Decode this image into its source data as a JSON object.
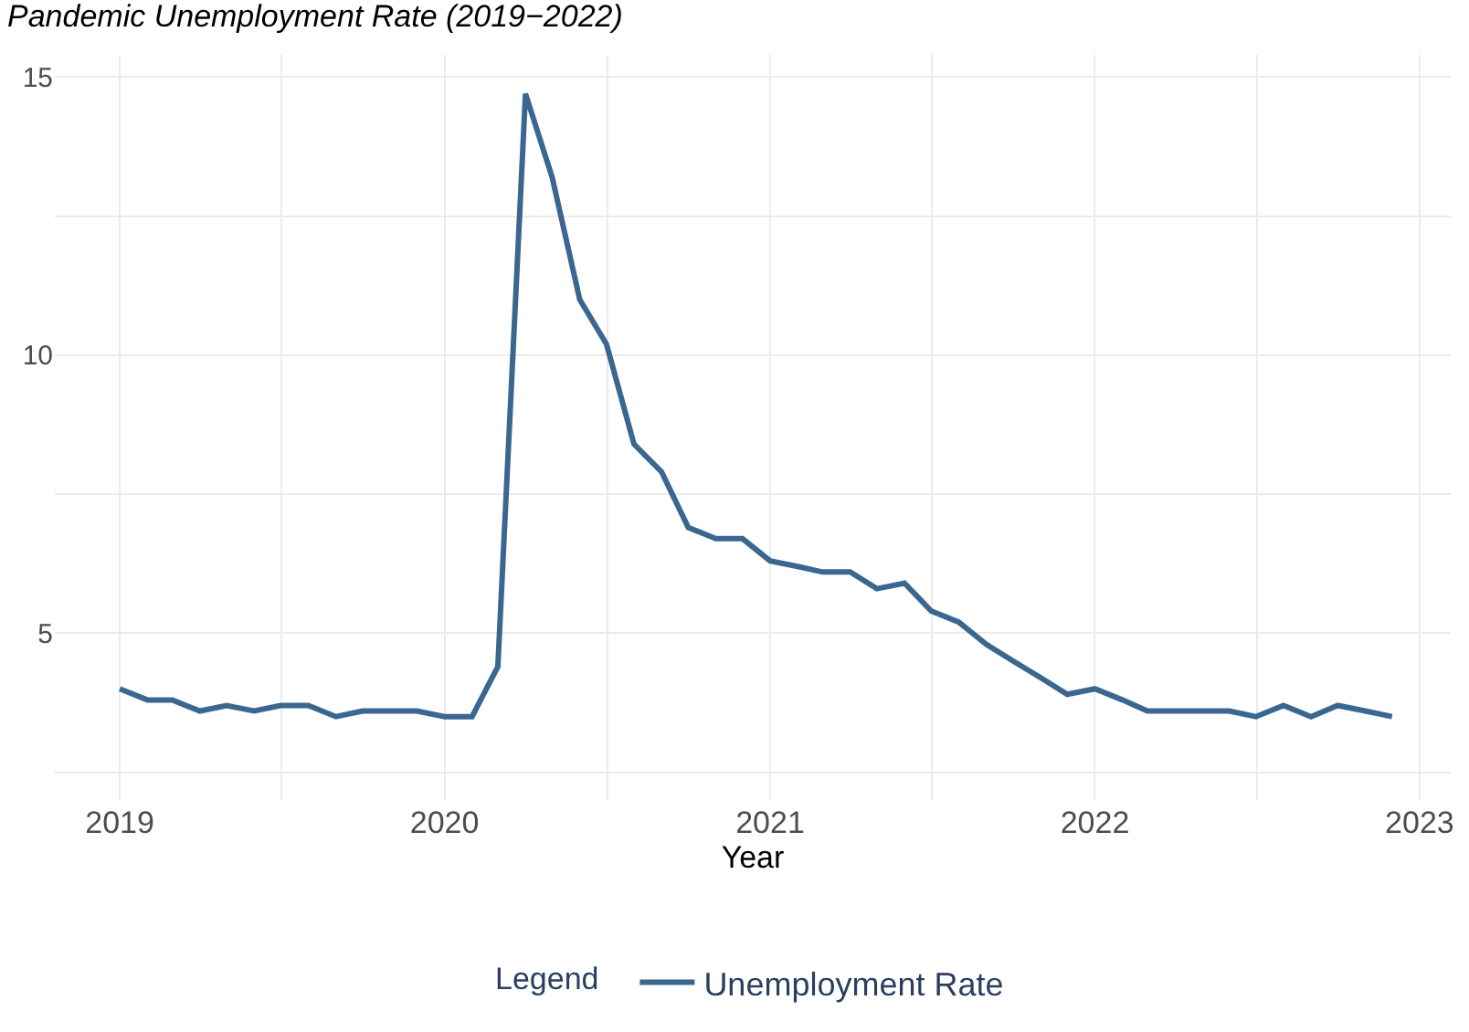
{
  "chart_data": {
    "type": "line",
    "title": "Pandemic Unemployment Rate (2019−2022)",
    "xlabel": "Year",
    "legend_title": "Legend",
    "x": [
      "2019-01",
      "2019-02",
      "2019-03",
      "2019-04",
      "2019-05",
      "2019-06",
      "2019-07",
      "2019-08",
      "2019-09",
      "2019-10",
      "2019-11",
      "2019-12",
      "2020-01",
      "2020-02",
      "2020-03",
      "2020-04",
      "2020-05",
      "2020-06",
      "2020-07",
      "2020-08",
      "2020-09",
      "2020-10",
      "2020-11",
      "2020-12",
      "2021-01",
      "2021-02",
      "2021-03",
      "2021-04",
      "2021-05",
      "2021-06",
      "2021-07",
      "2021-08",
      "2021-09",
      "2021-10",
      "2021-11",
      "2021-12",
      "2022-01",
      "2022-02",
      "2022-03",
      "2022-04",
      "2022-05",
      "2022-06",
      "2022-07",
      "2022-08",
      "2022-09",
      "2022-10",
      "2022-11",
      "2022-12"
    ],
    "series": [
      {
        "name": "Unemployment Rate",
        "color": "#3a6790",
        "values": [
          4.0,
          3.8,
          3.8,
          3.6,
          3.7,
          3.6,
          3.7,
          3.7,
          3.5,
          3.6,
          3.6,
          3.6,
          3.5,
          3.5,
          4.4,
          14.7,
          13.2,
          11.0,
          10.2,
          8.4,
          7.9,
          6.9,
          6.7,
          6.7,
          6.3,
          6.2,
          6.1,
          6.1,
          5.8,
          5.9,
          5.4,
          5.2,
          4.8,
          4.5,
          4.2,
          3.9,
          4.0,
          3.8,
          3.6,
          3.6,
          3.6,
          3.6,
          3.5,
          3.7,
          3.5,
          3.7,
          3.6,
          3.5
        ]
      }
    ],
    "xlim": [
      "2018-10-20",
      "2023-02-05"
    ],
    "xticks": [
      {
        "value": "2019-01-01",
        "label": "2019"
      },
      {
        "value": "2019-07-02",
        "label": null
      },
      {
        "value": "2020-01-01",
        "label": "2020"
      },
      {
        "value": "2020-07-02",
        "label": null
      },
      {
        "value": "2021-01-01",
        "label": "2021"
      },
      {
        "value": "2021-07-02",
        "label": null
      },
      {
        "value": "2022-01-01",
        "label": "2022"
      },
      {
        "value": "2022-07-02",
        "label": null
      },
      {
        "value": "2023-01-01",
        "label": "2023"
      }
    ],
    "ylim": [
      2.0,
      15.4
    ],
    "yticks": [
      {
        "value": 2.5,
        "label": null
      },
      5,
      {
        "value": 7.5,
        "label": null
      },
      10,
      {
        "value": 12.5,
        "label": null
      },
      15
    ],
    "grid": true,
    "legend": "bottom",
    "marker": "none",
    "line_style": "solid"
  }
}
